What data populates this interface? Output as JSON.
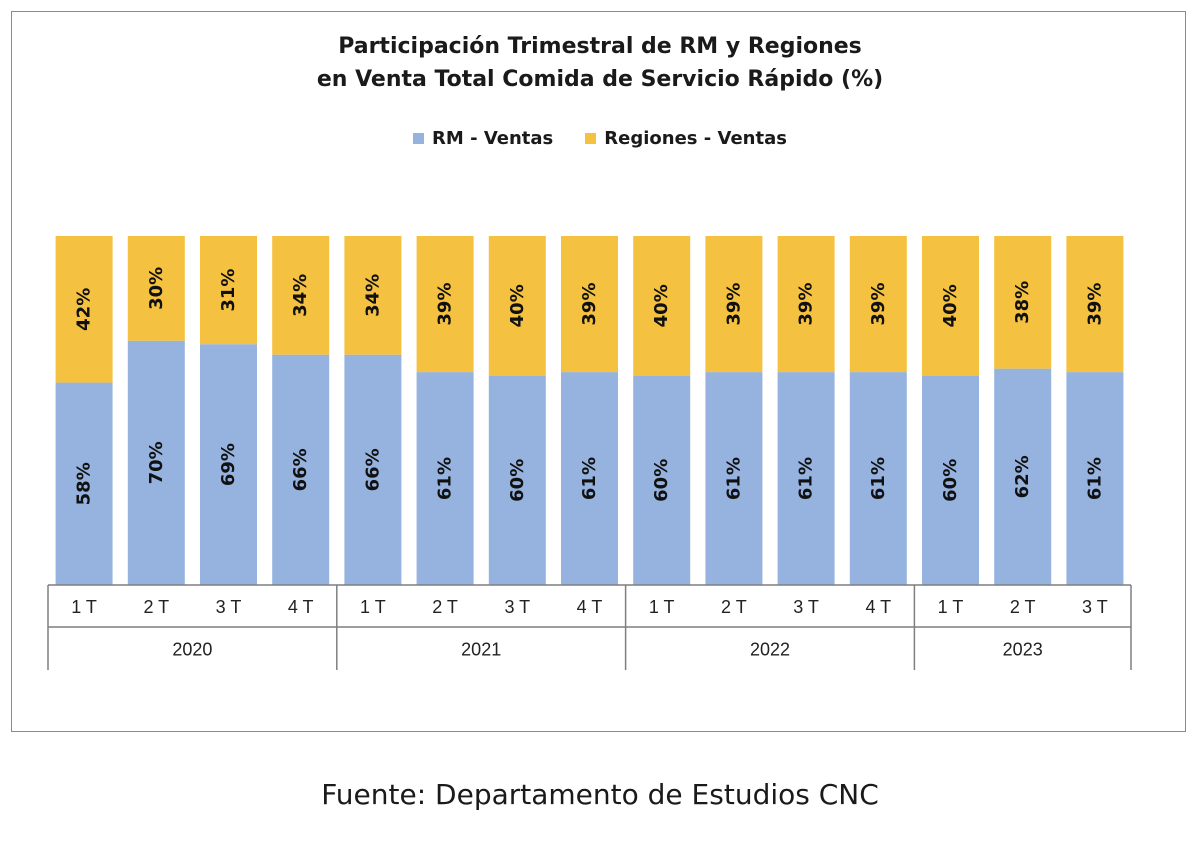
{
  "source": "Fuente: Departamento de Estudios CNC",
  "colors": {
    "rm": "#95b3de",
    "regiones": "#f5c141",
    "axis": "#7f7f7f",
    "label": "#111111"
  },
  "chart_data": {
    "type": "bar",
    "stacked": true,
    "percent_stacked": true,
    "title_lines": [
      "Participación Trimestral de RM y Regiones",
      "en Venta Total Comida de Servicio Rápido (%)"
    ],
    "legend_position": "top-center",
    "grid": false,
    "ylim": [
      0,
      100
    ],
    "categories": [
      "1 T",
      "2 T",
      "3 T",
      "4 T",
      "1 T",
      "2 T",
      "3 T",
      "4 T",
      "1 T",
      "2 T",
      "3 T",
      "4 T",
      "1 T",
      "2 T",
      "3 T"
    ],
    "groups": [
      {
        "label": "2020",
        "count": 4
      },
      {
        "label": "2021",
        "count": 4
      },
      {
        "label": "2022",
        "count": 4
      },
      {
        "label": "2023",
        "count": 3
      }
    ],
    "series": [
      {
        "name": "RM - Ventas",
        "values": [
          58,
          70,
          69,
          66,
          66,
          61,
          60,
          61,
          60,
          61,
          61,
          61,
          60,
          62,
          61
        ],
        "labels": [
          "58%",
          "70%",
          "69%",
          "66%",
          "66%",
          "61%",
          "60%",
          "61%",
          "60%",
          "61%",
          "61%",
          "61%",
          "60%",
          "62%",
          "61%"
        ]
      },
      {
        "name": "Regiones - Ventas",
        "values": [
          42,
          30,
          31,
          34,
          34,
          39,
          40,
          39,
          40,
          39,
          39,
          39,
          40,
          38,
          39
        ],
        "labels": [
          "42%",
          "30%",
          "31%",
          "34%",
          "34%",
          "39%",
          "40%",
          "39%",
          "40%",
          "39%",
          "39%",
          "39%",
          "40%",
          "38%",
          "39%"
        ]
      }
    ]
  }
}
